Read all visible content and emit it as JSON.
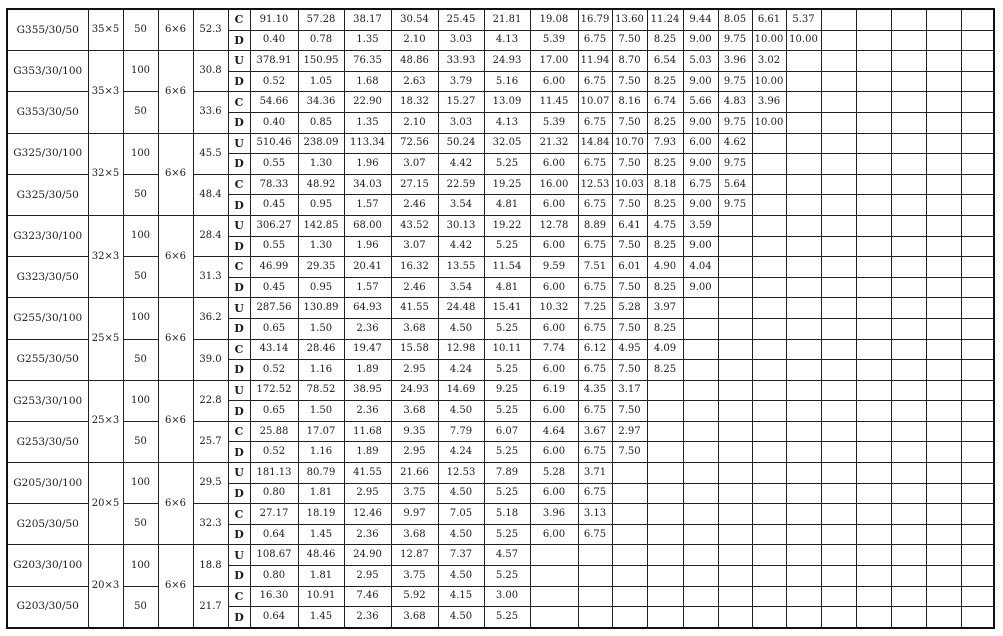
{
  "empty_columns": 5,
  "sets": [
    {
      "size": "35×5",
      "mesh": "6×6",
      "products": [
        {
          "name": "G355/30/50",
          "spacing": "50",
          "weight": "52.3",
          "rows": [
            {
              "type": "C",
              "values": [
                "91.10",
                "57.28",
                "38.17",
                "30.54",
                "25.45",
                "21.81",
                "19.08",
                "16.79",
                "13.60",
                "11.24",
                "9.44",
                "8.05",
                "6.61",
                "5.37"
              ]
            },
            {
              "type": "D",
              "values": [
                "0.40",
                "0.78",
                "1.35",
                "2.10",
                "3.03",
                "4.13",
                "5.39",
                "6.75",
                "7.50",
                "8.25",
                "9.00",
                "9.75",
                "10.00",
                "10.00"
              ]
            }
          ]
        }
      ]
    },
    {
      "size": "35×3",
      "mesh": "6×6",
      "products": [
        {
          "name": "G353/30/100",
          "spacing": "100",
          "weight": "30.8",
          "rows": [
            {
              "type": "U",
              "values": [
                "378.91",
                "150.95",
                "76.35",
                "48.86",
                "33.93",
                "24.93",
                "17.00",
                "11.94",
                "8.70",
                "6.54",
                "5.03",
                "3.96",
                "3.02"
              ]
            },
            {
              "type": "D",
              "values": [
                "0.52",
                "1.05",
                "1.68",
                "2.63",
                "3.79",
                "5.16",
                "6.00",
                "6.75",
                "7.50",
                "8.25",
                "9.00",
                "9.75",
                "10.00"
              ]
            }
          ]
        },
        {
          "name": "G353/30/50",
          "spacing": "50",
          "weight": "33.6",
          "rows": [
            {
              "type": "C",
              "values": [
                "54.66",
                "34.36",
                "22.90",
                "18.32",
                "15.27",
                "13.09",
                "11.45",
                "10.07",
                "8.16",
                "6.74",
                "5.66",
                "4.83",
                "3.96"
              ]
            },
            {
              "type": "D",
              "values": [
                "0.40",
                "0.85",
                "1.35",
                "2.10",
                "3.03",
                "4.13",
                "5.39",
                "6.75",
                "7.50",
                "8.25",
                "9.00",
                "9.75",
                "10.00"
              ]
            }
          ]
        }
      ]
    },
    {
      "size": "32×5",
      "mesh": "6×6",
      "products": [
        {
          "name": "G325/30/100",
          "spacing": "100",
          "weight": "45.5",
          "rows": [
            {
              "type": "U",
              "values": [
                "510.46",
                "238.09",
                "113.34",
                "72.56",
                "50.24",
                "32.05",
                "21.32",
                "14.84",
                "10.70",
                "7.93",
                "6.00",
                "4.62"
              ]
            },
            {
              "type": "D",
              "values": [
                "0.55",
                "1.30",
                "1.96",
                "3.07",
                "4.42",
                "5.25",
                "6.00",
                "6.75",
                "7.50",
                "8.25",
                "9.00",
                "9.75"
              ]
            }
          ]
        },
        {
          "name": "G325/30/50",
          "spacing": "50",
          "weight": "48.4",
          "rows": [
            {
              "type": "C",
              "values": [
                "78.33",
                "48.92",
                "34.03",
                "27.15",
                "22.59",
                "19.25",
                "16.00",
                "12.53",
                "10.03",
                "8.18",
                "6.75",
                "5.64"
              ]
            },
            {
              "type": "D",
              "values": [
                "0.45",
                "0.95",
                "1.57",
                "2.46",
                "3.54",
                "4.81",
                "6.00",
                "6.75",
                "7.50",
                "8.25",
                "9.00",
                "9.75"
              ]
            }
          ]
        }
      ]
    },
    {
      "size": "32×3",
      "mesh": "6×6",
      "products": [
        {
          "name": "G323/30/100",
          "spacing": "100",
          "weight": "28.4",
          "rows": [
            {
              "type": "U",
              "values": [
                "306.27",
                "142.85",
                "68.00",
                "43.52",
                "30.13",
                "19.22",
                "12.78",
                "8.89",
                "6.41",
                "4.75",
                "3.59"
              ]
            },
            {
              "type": "D",
              "values": [
                "0.55",
                "1.30",
                "1.96",
                "3.07",
                "4.42",
                "5.25",
                "6.00",
                "6.75",
                "7.50",
                "8.25",
                "9.00"
              ]
            }
          ]
        },
        {
          "name": "G323/30/50",
          "spacing": "50",
          "weight": "31.3",
          "rows": [
            {
              "type": "C",
              "values": [
                "46.99",
                "29.35",
                "20.41",
                "16.32",
                "13.55",
                "11.54",
                "9.59",
                "7.51",
                "6.01",
                "4.90",
                "4.04"
              ]
            },
            {
              "type": "D",
              "values": [
                "0.45",
                "0.95",
                "1.57",
                "2.46",
                "3.54",
                "4.81",
                "6.00",
                "6.75",
                "7.50",
                "8.25",
                "9.00"
              ]
            }
          ]
        }
      ]
    },
    {
      "size": "25×5",
      "mesh": "6×6",
      "products": [
        {
          "name": "G255/30/100",
          "spacing": "100",
          "weight": "36.2",
          "rows": [
            {
              "type": "U",
              "values": [
                "287.56",
                "130.89",
                "64.93",
                "41.55",
                "24.48",
                "15.41",
                "10.32",
                "7.25",
                "5.28",
                "3.97"
              ]
            },
            {
              "type": "D",
              "values": [
                "0.65",
                "1.50",
                "2.36",
                "3.68",
                "4.50",
                "5.25",
                "6.00",
                "6.75",
                "7.50",
                "8.25"
              ]
            }
          ]
        },
        {
          "name": "G255/30/50",
          "spacing": "50",
          "weight": "39.0",
          "rows": [
            {
              "type": "C",
              "values": [
                "43.14",
                "28.46",
                "19.47",
                "15.58",
                "12.98",
                "10.11",
                "7.74",
                "6.12",
                "4.95",
                "4.09"
              ]
            },
            {
              "type": "D",
              "values": [
                "0.52",
                "1.16",
                "1.89",
                "2.95",
                "4.24",
                "5.25",
                "6.00",
                "6.75",
                "7.50",
                "8.25"
              ]
            }
          ]
        }
      ]
    },
    {
      "size": "25×3",
      "mesh": "6×6",
      "products": [
        {
          "name": "G253/30/100",
          "spacing": "100",
          "weight": "22.8",
          "rows": [
            {
              "type": "U",
              "values": [
                "172.52",
                "78.52",
                "38.95",
                "24.93",
                "14.69",
                "9.25",
                "6.19",
                "4.35",
                "3.17"
              ]
            },
            {
              "type": "D",
              "values": [
                "0.65",
                "1.50",
                "2.36",
                "3.68",
                "4.50",
                "5.25",
                "6.00",
                "6.75",
                "7.50"
              ]
            }
          ]
        },
        {
          "name": "G253/30/50",
          "spacing": "50",
          "weight": "25.7",
          "rows": [
            {
              "type": "C",
              "values": [
                "25.88",
                "17.07",
                "11.68",
                "9.35",
                "7.79",
                "6.07",
                "4.64",
                "3.67",
                "2.97"
              ]
            },
            {
              "type": "D",
              "values": [
                "0.52",
                "1.16",
                "1.89",
                "2.95",
                "4.24",
                "5.25",
                "6.00",
                "6.75",
                "7.50"
              ]
            }
          ]
        }
      ]
    },
    {
      "size": "20×5",
      "mesh": "6×6",
      "products": [
        {
          "name": "G205/30/100",
          "spacing": "100",
          "weight": "29.5",
          "rows": [
            {
              "type": "U",
              "values": [
                "181.13",
                "80.79",
                "41.55",
                "21.66",
                "12.53",
                "7.89",
                "5.28",
                "3.71"
              ]
            },
            {
              "type": "D",
              "values": [
                "0.80",
                "1.81",
                "2.95",
                "3.75",
                "4.50",
                "5.25",
                "6.00",
                "6.75"
              ]
            }
          ]
        },
        {
          "name": "G205/30/50",
          "spacing": "50",
          "weight": "32.3",
          "rows": [
            {
              "type": "C",
              "values": [
                "27.17",
                "18.19",
                "12.46",
                "9.97",
                "7.05",
                "5.18",
                "3.96",
                "3.13"
              ]
            },
            {
              "type": "D",
              "values": [
                "0.64",
                "1.45",
                "2.36",
                "3.68",
                "4.50",
                "5.25",
                "6.00",
                "6.75"
              ]
            }
          ]
        }
      ]
    },
    {
      "size": "20×3",
      "mesh": "6×6",
      "products": [
        {
          "name": "G203/30/100",
          "spacing": "100",
          "weight": "18.8",
          "rows": [
            {
              "type": "U",
              "values": [
                "108.67",
                "48.46",
                "24.90",
                "12.87",
                "7.37",
                "4.57"
              ]
            },
            {
              "type": "D",
              "values": [
                "0.80",
                "1.81",
                "2.95",
                "3.75",
                "4.50",
                "5.25"
              ]
            }
          ]
        },
        {
          "name": "G203/30/50",
          "spacing": "50",
          "weight": "21.7",
          "rows": [
            {
              "type": "C",
              "values": [
                "16.30",
                "10.91",
                "7.46",
                "5.92",
                "4.15",
                "3.00"
              ]
            },
            {
              "type": "D",
              "values": [
                "0.64",
                "1.45",
                "2.36",
                "3.68",
                "4.50",
                "5.25"
              ]
            }
          ]
        }
      ]
    }
  ]
}
